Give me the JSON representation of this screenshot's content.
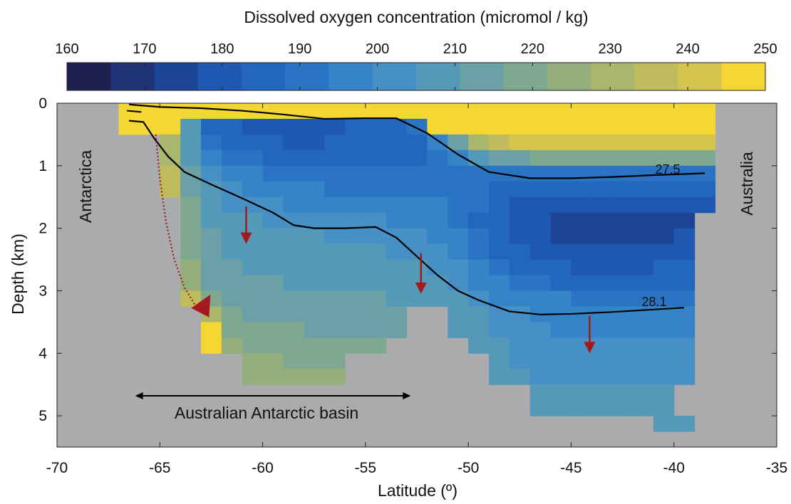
{
  "colorbar": {
    "title": "Dissolved oxygen concentration (micromol / kg)",
    "ticks": [
      "160",
      "170",
      "180",
      "190",
      "200",
      "210",
      "220",
      "230",
      "240",
      "250"
    ],
    "colors": [
      "#1d1f4f",
      "#1f3275",
      "#1c4595",
      "#1f58b0",
      "#2366bd",
      "#2b74c4",
      "#3584c8",
      "#4690c6",
      "#5599b9",
      "#6aa0a6",
      "#7fa891",
      "#95af7c",
      "#aab66b",
      "#c0bb5d",
      "#d5c54e",
      "#f4d733"
    ]
  },
  "chart_data": {
    "type": "heatmap",
    "xlabel": "Latitude (º)",
    "ylabel": "Depth (km)",
    "xlim": [
      -70,
      -35
    ],
    "ylim": [
      0,
      5.5
    ],
    "xticks": [
      "-70",
      "-65",
      "-60",
      "-55",
      "-50",
      "-45",
      "-40",
      "-35"
    ],
    "yticks": [
      "0",
      "1",
      "2",
      "3",
      "4",
      "5"
    ],
    "background_color": "#a9abad",
    "clim": [
      160,
      250
    ],
    "annotations": {
      "left": "Antarctica",
      "right": "Australia",
      "basin": "Australian Antarctic basin",
      "iso_upper": "27.5",
      "iso_lower": "28.1"
    },
    "isopycnal_27_5": {
      "lat": [
        -66.5,
        -65,
        -63,
        -61,
        -59,
        -57,
        -55,
        -53.5,
        -52,
        -50.5,
        -49,
        -47,
        -45,
        -43,
        -41,
        -38.5
      ],
      "depth": [
        0.02,
        0.06,
        0.08,
        0.12,
        0.18,
        0.25,
        0.24,
        0.24,
        0.48,
        0.82,
        1.1,
        1.2,
        1.2,
        1.18,
        1.15,
        1.12
      ]
    },
    "isopycnal_28_1": {
      "lat": [
        -66.5,
        -65.8,
        -65.3,
        -64.6,
        -63.8,
        -62.5,
        -61,
        -59.5,
        -58.5,
        -57.5,
        -56,
        -54.5,
        -53.5,
        -52.5,
        -51.5,
        -50.5,
        -49.5,
        -48,
        -46.5,
        -45,
        -43,
        -41,
        -39.5
      ],
      "depth": [
        0.28,
        0.3,
        0.55,
        0.85,
        1.1,
        1.3,
        1.52,
        1.75,
        1.95,
        2.0,
        2.0,
        1.98,
        2.15,
        2.45,
        2.75,
        3.0,
        3.15,
        3.33,
        3.38,
        3.37,
        3.34,
        3.3,
        3.27
      ]
    },
    "descending_arrows": [
      {
        "lat": -60.8,
        "from": 1.65,
        "to": 2.25
      },
      {
        "lat": -52.3,
        "from": 2.4,
        "to": 3.05
      },
      {
        "lat": -44.1,
        "from": 3.4,
        "to": 4.0
      }
    ],
    "bottom_water_path": {
      "lat": [
        -65.2,
        -65.0,
        -64.7,
        -64.3,
        -63.8,
        -63.3
      ],
      "depth": [
        0.5,
        1.2,
        1.9,
        2.5,
        2.95,
        3.22
      ]
    },
    "basin_extent": [
      -66.2,
      -52.8
    ],
    "cells": {
      "x_edges": [
        -67,
        -66,
        -65,
        -64,
        -63,
        -62,
        -61,
        -60,
        -59,
        -58,
        -57,
        -56,
        -55,
        -54,
        -53,
        -52,
        -51,
        -50,
        -49,
        -48,
        -47,
        -46,
        -45,
        -44,
        -43,
        -42,
        -41,
        -40,
        -39,
        -38
      ],
      "y_edges": [
        0,
        0.25,
        0.5,
        0.75,
        1,
        1.25,
        1.5,
        1.75,
        2,
        2.25,
        2.5,
        2.75,
        3,
        3.25,
        3.5,
        3.75,
        4,
        4.25,
        4.5,
        4.75,
        5,
        5.25
      ],
      "values": [
        [
          250,
          250,
          250,
          250,
          250,
          250,
          250,
          250,
          250,
          250,
          250,
          250,
          250,
          250,
          250,
          250,
          250,
          250,
          250,
          250,
          250,
          250,
          250,
          250,
          250,
          250,
          250,
          250,
          250
        ],
        [
          250,
          250,
          250,
          210,
          188,
          185,
          182,
          180,
          180,
          180,
          181,
          183,
          185,
          187,
          192,
          245,
          250,
          250,
          250,
          250,
          250,
          250,
          250,
          250,
          250,
          250,
          250,
          250,
          250
        ],
        [
          0,
          0,
          230,
          205,
          192,
          188,
          185,
          183,
          182,
          182,
          183,
          184,
          185,
          186,
          188,
          195,
          215,
          228,
          236,
          240,
          242,
          242,
          241,
          240,
          240,
          240,
          240,
          240,
          240
        ],
        [
          0,
          0,
          232,
          208,
          196,
          192,
          190,
          188,
          187,
          186,
          186,
          186,
          186,
          187,
          187,
          190,
          196,
          205,
          212,
          215,
          217,
          218,
          218,
          218,
          218,
          218,
          218,
          218,
          218
        ],
        [
          0,
          0,
          234,
          212,
          201,
          197,
          195,
          193,
          191,
          190,
          189,
          189,
          189,
          189,
          189,
          190,
          191,
          192,
          193,
          192,
          191,
          190,
          190,
          190,
          190,
          190,
          190,
          190,
          190
        ],
        [
          0,
          0,
          236,
          215,
          205,
          201,
          199,
          197,
          195,
          194,
          193,
          193,
          193,
          192,
          192,
          192,
          191,
          190,
          188,
          186,
          185,
          184,
          184,
          184,
          184,
          184,
          184,
          184,
          184
        ],
        [
          0,
          0,
          0,
          217,
          208,
          204,
          202,
          200,
          199,
          198,
          197,
          196,
          196,
          196,
          195,
          194,
          192,
          189,
          185,
          182,
          180,
          179,
          178,
          178,
          178,
          178,
          178,
          178,
          178
        ],
        [
          0,
          0,
          0,
          218,
          210,
          207,
          205,
          204,
          203,
          202,
          201,
          201,
          200,
          199,
          198,
          196,
          193,
          188,
          183,
          180,
          177,
          175,
          174,
          174,
          174,
          174,
          174,
          176,
          0
        ],
        [
          0,
          0,
          0,
          219,
          212,
          209,
          207,
          206,
          205,
          205,
          204,
          204,
          203,
          202,
          200,
          198,
          194,
          190,
          185,
          181,
          178,
          176,
          175,
          174,
          174,
          174,
          175,
          177,
          0
        ],
        [
          0,
          0,
          0,
          220,
          213,
          210,
          208,
          207,
          207,
          206,
          206,
          206,
          205,
          204,
          203,
          200,
          197,
          193,
          188,
          184,
          181,
          179,
          178,
          177,
          177,
          178,
          179,
          180,
          0
        ],
        [
          0,
          0,
          0,
          222,
          214,
          211,
          210,
          209,
          208,
          208,
          208,
          208,
          207,
          206,
          205,
          203,
          200,
          196,
          192,
          188,
          185,
          183,
          182,
          181,
          181,
          182,
          183,
          184,
          0
        ],
        [
          0,
          0,
          0,
          226,
          216,
          213,
          212,
          211,
          210,
          210,
          210,
          210,
          209,
          208,
          207,
          205,
          202,
          199,
          196,
          193,
          190,
          188,
          187,
          186,
          186,
          186,
          187,
          188,
          0
        ],
        [
          0,
          0,
          0,
          238,
          218,
          215,
          214,
          213,
          212,
          212,
          212,
          212,
          211,
          210,
          209,
          207,
          205,
          202,
          199,
          197,
          195,
          194,
          193,
          192,
          192,
          192,
          192,
          193,
          0
        ],
        [
          0,
          0,
          0,
          0,
          232,
          218,
          216,
          215,
          215,
          214,
          214,
          214,
          213,
          212,
          0,
          0,
          207,
          205,
          202,
          200,
          199,
          198,
          197,
          196,
          196,
          196,
          196,
          197,
          0
        ],
        [
          0,
          0,
          0,
          0,
          250,
          220,
          218,
          217,
          217,
          216,
          216,
          216,
          215,
          212,
          0,
          0,
          208,
          206,
          204,
          202,
          200,
          199,
          198,
          198,
          198,
          198,
          198,
          198,
          0
        ],
        [
          0,
          0,
          0,
          0,
          250,
          222,
          220,
          219,
          218,
          218,
          218,
          218,
          217,
          0,
          0,
          0,
          0,
          207,
          205,
          203,
          202,
          201,
          200,
          200,
          200,
          200,
          200,
          200,
          0
        ],
        [
          0,
          0,
          0,
          0,
          0,
          0,
          223,
          222,
          221,
          221,
          221,
          0,
          0,
          0,
          0,
          0,
          0,
          0,
          206,
          204,
          203,
          202,
          201,
          201,
          201,
          201,
          201,
          202,
          0
        ],
        [
          0,
          0,
          0,
          0,
          0,
          0,
          225,
          224,
          224,
          223,
          223,
          0,
          0,
          0,
          0,
          0,
          0,
          0,
          207,
          205,
          204,
          203,
          203,
          203,
          203,
          203,
          203,
          203,
          0
        ],
        [
          0,
          0,
          0,
          0,
          0,
          0,
          0,
          0,
          0,
          0,
          0,
          0,
          0,
          0,
          0,
          0,
          0,
          0,
          0,
          0,
          207,
          206,
          205,
          205,
          205,
          205,
          205,
          0,
          0
        ],
        [
          0,
          0,
          0,
          0,
          0,
          0,
          0,
          0,
          0,
          0,
          0,
          0,
          0,
          0,
          0,
          0,
          0,
          0,
          0,
          0,
          208,
          207,
          206,
          206,
          206,
          206,
          206,
          0,
          0
        ],
        [
          0,
          0,
          0,
          0,
          0,
          0,
          0,
          0,
          0,
          0,
          0,
          0,
          0,
          0,
          0,
          0,
          0,
          0,
          0,
          0,
          0,
          0,
          0,
          0,
          0,
          0,
          209,
          209,
          0
        ],
        [
          0,
          0,
          0,
          0,
          0,
          0,
          0,
          0,
          0,
          0,
          0,
          0,
          0,
          0,
          0,
          0,
          0,
          0,
          0,
          0,
          0,
          0,
          0,
          0,
          0,
          0,
          210,
          210,
          0
        ]
      ]
    }
  }
}
